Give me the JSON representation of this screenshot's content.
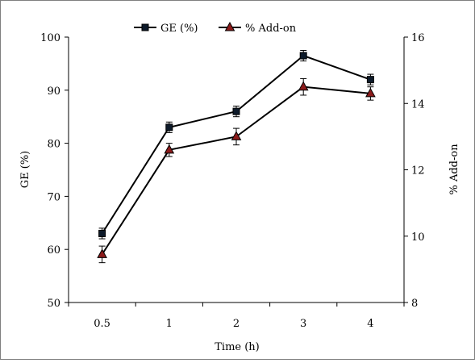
{
  "chart_data": {
    "type": "line",
    "title": "",
    "categories": [
      "0.5",
      "1",
      "2",
      "3",
      "4"
    ],
    "xlabel": "Time (h)",
    "ylabel": "GE (%)",
    "y2label": "% Add-on",
    "ylim": [
      50,
      100
    ],
    "y2lim": [
      8,
      16
    ],
    "yticks": [
      "50",
      "60",
      "70",
      "80",
      "90",
      "100"
    ],
    "y2ticks": [
      "8",
      "10",
      "12",
      "14",
      "16"
    ],
    "grid": false,
    "legend_position": "top",
    "series": [
      {
        "name": "GE (%)",
        "axis": "left",
        "marker": "square",
        "color": "#000000",
        "marker_color": "#0d1a2a",
        "values": [
          63.0,
          83.0,
          86.0,
          96.5,
          92.0
        ],
        "errors": [
          1.0,
          1.0,
          1.0,
          1.0,
          1.0
        ]
      },
      {
        "name": "% Add-on",
        "axis": "right",
        "marker": "triangle",
        "color": "#000000",
        "marker_color": "#8b1a1a",
        "values": [
          9.45,
          12.6,
          13.0,
          14.5,
          14.3
        ],
        "errors": [
          0.25,
          0.2,
          0.25,
          0.25,
          0.2
        ]
      }
    ]
  }
}
